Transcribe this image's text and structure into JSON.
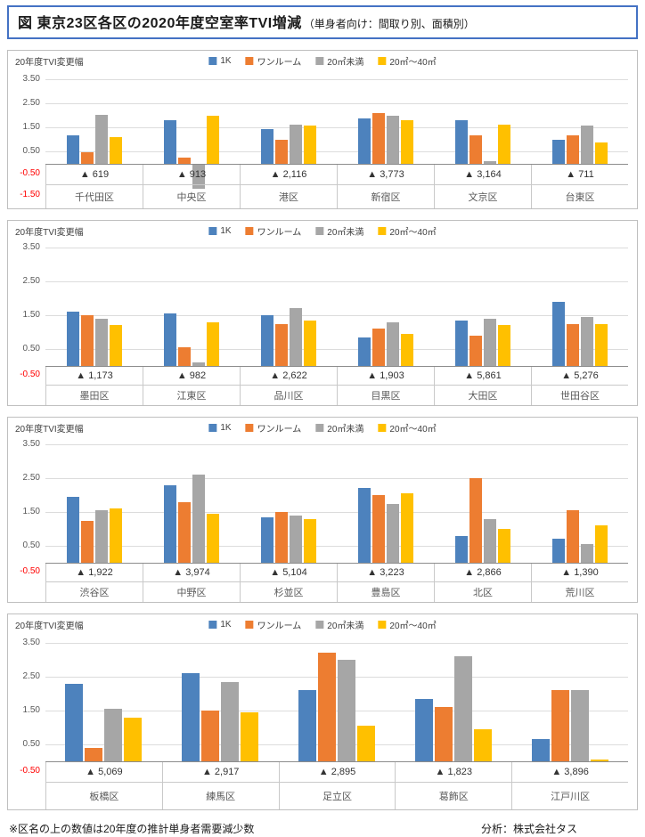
{
  "title": {
    "main": "図 東京23区各区の2020年度空室率TVI増減",
    "sub": "（単身者向け：間取り別、面積別）"
  },
  "footnote": "※区名の上の数値は20年度の推計単身者需要減少数",
  "credit": "分析：株式会社タス",
  "colors": {
    "series": [
      "#4D82BD",
      "#ED7D31",
      "#A6A6A6",
      "#FFC000"
    ],
    "negative_tick": "#FF0000",
    "title_border": "#4472C4"
  },
  "chart_data": [
    {
      "type": "bar",
      "ylabel": "20年度TVI変更幅",
      "xlabel": "",
      "ylim": [
        -1.5,
        3.5
      ],
      "yticks": [
        3.5,
        2.5,
        1.5,
        0.5,
        -0.5,
        -1.5
      ],
      "grid": true,
      "legend_position": "top",
      "categories": [
        "千代田区",
        "中央区",
        "港区",
        "新宿区",
        "文京区",
        "台東区"
      ],
      "demand_labels": [
        "▲ 619",
        "▲ 913",
        "▲ 2,116",
        "▲ 3,773",
        "▲ 3,164",
        "▲ 711"
      ],
      "series": [
        {
          "name": "1K",
          "values": [
            1.2,
            1.8,
            1.45,
            1.9,
            1.8,
            1.0
          ]
        },
        {
          "name": "ワンルーム",
          "values": [
            0.5,
            0.25,
            1.0,
            2.1,
            1.2,
            1.2
          ]
        },
        {
          "name": "20㎡未満",
          "values": [
            2.05,
            -1.05,
            1.65,
            2.0,
            0.1,
            1.6
          ]
        },
        {
          "name": "20㎡～40㎡",
          "values": [
            1.1,
            2.0,
            1.6,
            1.8,
            1.65,
            0.9
          ]
        }
      ]
    },
    {
      "type": "bar",
      "ylabel": "20年度TVI変更幅",
      "xlabel": "",
      "ylim": [
        -0.5,
        3.5
      ],
      "yticks": [
        3.5,
        2.5,
        1.5,
        0.5,
        -0.5
      ],
      "grid": true,
      "legend_position": "top",
      "categories": [
        "墨田区",
        "江東区",
        "品川区",
        "目黒区",
        "大田区",
        "世田谷区"
      ],
      "demand_labels": [
        "▲ 1,173",
        "▲ 982",
        "▲ 2,622",
        "▲ 1,903",
        "▲ 5,861",
        "▲ 5,276"
      ],
      "series": [
        {
          "name": "1K",
          "values": [
            1.6,
            1.55,
            1.5,
            0.85,
            1.35,
            1.9
          ]
        },
        {
          "name": "ワンルーム",
          "values": [
            1.5,
            0.55,
            1.25,
            1.1,
            0.9,
            1.25
          ]
        },
        {
          "name": "20㎡未満",
          "values": [
            1.4,
            0.1,
            1.7,
            1.3,
            1.4,
            1.45
          ]
        },
        {
          "name": "20㎡～40㎡",
          "values": [
            1.2,
            1.3,
            1.35,
            0.95,
            1.2,
            1.25
          ]
        }
      ]
    },
    {
      "type": "bar",
      "ylabel": "20年度TVI変更幅",
      "xlabel": "",
      "ylim": [
        -0.5,
        3.5
      ],
      "yticks": [
        3.5,
        2.5,
        1.5,
        0.5,
        -0.5
      ],
      "grid": true,
      "legend_position": "top",
      "categories": [
        "渋谷区",
        "中野区",
        "杉並区",
        "豊島区",
        "北区",
        "荒川区"
      ],
      "demand_labels": [
        "▲ 1,922",
        "▲ 3,974",
        "▲ 5,104",
        "▲ 3,223",
        "▲ 2,866",
        "▲ 1,390"
      ],
      "series": [
        {
          "name": "1K",
          "values": [
            1.95,
            2.3,
            1.35,
            2.2,
            0.8,
            0.7
          ]
        },
        {
          "name": "ワンルーム",
          "values": [
            1.25,
            1.8,
            1.5,
            2.0,
            2.5,
            1.55
          ]
        },
        {
          "name": "20㎡未満",
          "values": [
            1.55,
            2.6,
            1.4,
            1.75,
            1.3,
            0.55
          ]
        },
        {
          "name": "20㎡～40㎡",
          "values": [
            1.6,
            1.45,
            1.3,
            2.05,
            1.0,
            1.1
          ]
        }
      ]
    },
    {
      "type": "bar",
      "ylabel": "20年度TVI変更幅",
      "xlabel": "",
      "ylim": [
        -0.5,
        3.5
      ],
      "yticks": [
        3.5,
        2.5,
        1.5,
        0.5,
        -0.5
      ],
      "grid": true,
      "legend_position": "top",
      "categories": [
        "板橋区",
        "練馬区",
        "足立区",
        "葛飾区",
        "江戸川区"
      ],
      "demand_labels": [
        "▲ 5,069",
        "▲ 2,917",
        "▲ 2,895",
        "▲ 1,823",
        "▲ 3,896"
      ],
      "series": [
        {
          "name": "1K",
          "values": [
            2.3,
            2.6,
            2.1,
            1.85,
            0.65
          ]
        },
        {
          "name": "ワンルーム",
          "values": [
            0.4,
            1.5,
            3.2,
            1.6,
            2.1
          ]
        },
        {
          "name": "20㎡未満",
          "values": [
            1.55,
            2.35,
            3.0,
            3.1,
            2.1
          ]
        },
        {
          "name": "20㎡～40㎡",
          "values": [
            1.3,
            1.45,
            1.05,
            0.95,
            0.05
          ]
        }
      ]
    }
  ]
}
